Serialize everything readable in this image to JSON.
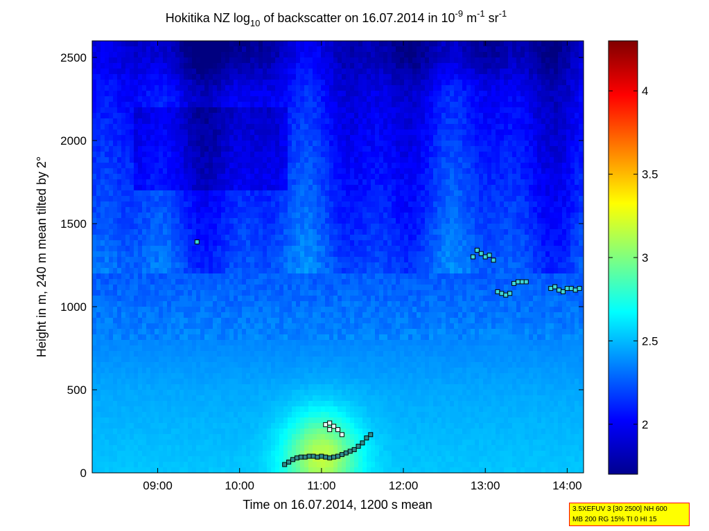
{
  "title": {
    "prefix": "Hokitika NZ log",
    "sub": "10",
    "mid": " of backscatter on 16.07.2014 in 10",
    "exp1": "-9",
    "mid2": " m",
    "exp2": "-1",
    "mid3": " sr",
    "exp3": "-1"
  },
  "xlabel": "Time on 16.07.2014, 1200 s mean",
  "ylabel": "Height in m, 240 m mean tilted by 2°",
  "infobox": {
    "line1": "3.5XEFUV 3 [30 2500] NH 600",
    "line2": "MB 200 RG 15% TI 0 HI 15"
  },
  "chart_data": {
    "type": "heatmap",
    "title": "Hokitika NZ log10 of backscatter on 16.07.2014 in 10^-9 m^-1 sr^-1",
    "xlabel": "Time on 16.07.2014, 1200 s mean",
    "ylabel": "Height in m, 240 m mean tilted by 2°",
    "x_range_hours": [
      8.2,
      14.2
    ],
    "xlim": [
      "08:12",
      "14:12"
    ],
    "ylim": [
      0,
      2600
    ],
    "x_ticks": [
      9,
      10,
      11,
      12,
      13,
      14
    ],
    "x_tick_labels": [
      "09:00",
      "10:00",
      "11:00",
      "12:00",
      "13:00",
      "14:00"
    ],
    "y_ticks": [
      0,
      500,
      1000,
      1500,
      2000,
      2500
    ],
    "y_tick_labels": [
      "0",
      "500",
      "1000",
      "1500",
      "2000",
      "2500"
    ],
    "colorbar": {
      "range": [
        1.7,
        4.3
      ],
      "ticks": [
        2,
        2.5,
        3,
        3.5,
        4
      ],
      "tick_labels": [
        "2",
        "2.5",
        "3",
        "3.5",
        "4"
      ],
      "colormap": "jet"
    },
    "field_description": {
      "surface_layer_value": 2.45,
      "aloft_value": 2.15,
      "plume_peak": {
        "time": 11.0,
        "height": 100,
        "value": 3.1
      },
      "top_background_value": 1.75
    },
    "markers": {
      "boundary_layer": [
        [
          10.55,
          50
        ],
        [
          10.6,
          65
        ],
        [
          10.65,
          80
        ],
        [
          10.7,
          90
        ],
        [
          10.75,
          95
        ],
        [
          10.8,
          95
        ],
        [
          10.85,
          100
        ],
        [
          10.9,
          100
        ],
        [
          10.95,
          95
        ],
        [
          11.0,
          100
        ],
        [
          11.05,
          95
        ],
        [
          11.1,
          90
        ],
        [
          11.15,
          95
        ],
        [
          11.2,
          100
        ],
        [
          11.25,
          110
        ],
        [
          11.3,
          120
        ],
        [
          11.35,
          130
        ],
        [
          11.4,
          140
        ],
        [
          11.45,
          160
        ],
        [
          11.5,
          180
        ],
        [
          11.55,
          210
        ],
        [
          11.6,
          230
        ]
      ],
      "elevated_near_11": [
        [
          11.05,
          290
        ],
        [
          11.1,
          300
        ],
        [
          11.15,
          280
        ],
        [
          11.2,
          260
        ],
        [
          11.25,
          230
        ],
        [
          11.1,
          260
        ]
      ],
      "single": [
        [
          9.48,
          1390
        ]
      ],
      "layer_1300": [
        [
          12.85,
          1300
        ],
        [
          12.9,
          1340
        ],
        [
          12.95,
          1320
        ],
        [
          13.0,
          1300
        ],
        [
          13.05,
          1310
        ],
        [
          13.1,
          1280
        ]
      ],
      "layer_1100": [
        [
          13.15,
          1090
        ],
        [
          13.2,
          1080
        ],
        [
          13.25,
          1070
        ],
        [
          13.3,
          1080
        ],
        [
          13.35,
          1140
        ],
        [
          13.4,
          1150
        ],
        [
          13.45,
          1150
        ],
        [
          13.5,
          1150
        ]
      ],
      "layer_1100_late": [
        [
          13.8,
          1110
        ],
        [
          13.85,
          1120
        ],
        [
          13.9,
          1100
        ],
        [
          13.95,
          1090
        ],
        [
          14.0,
          1110
        ],
        [
          14.05,
          1110
        ],
        [
          14.1,
          1100
        ],
        [
          14.15,
          1110
        ]
      ]
    }
  }
}
